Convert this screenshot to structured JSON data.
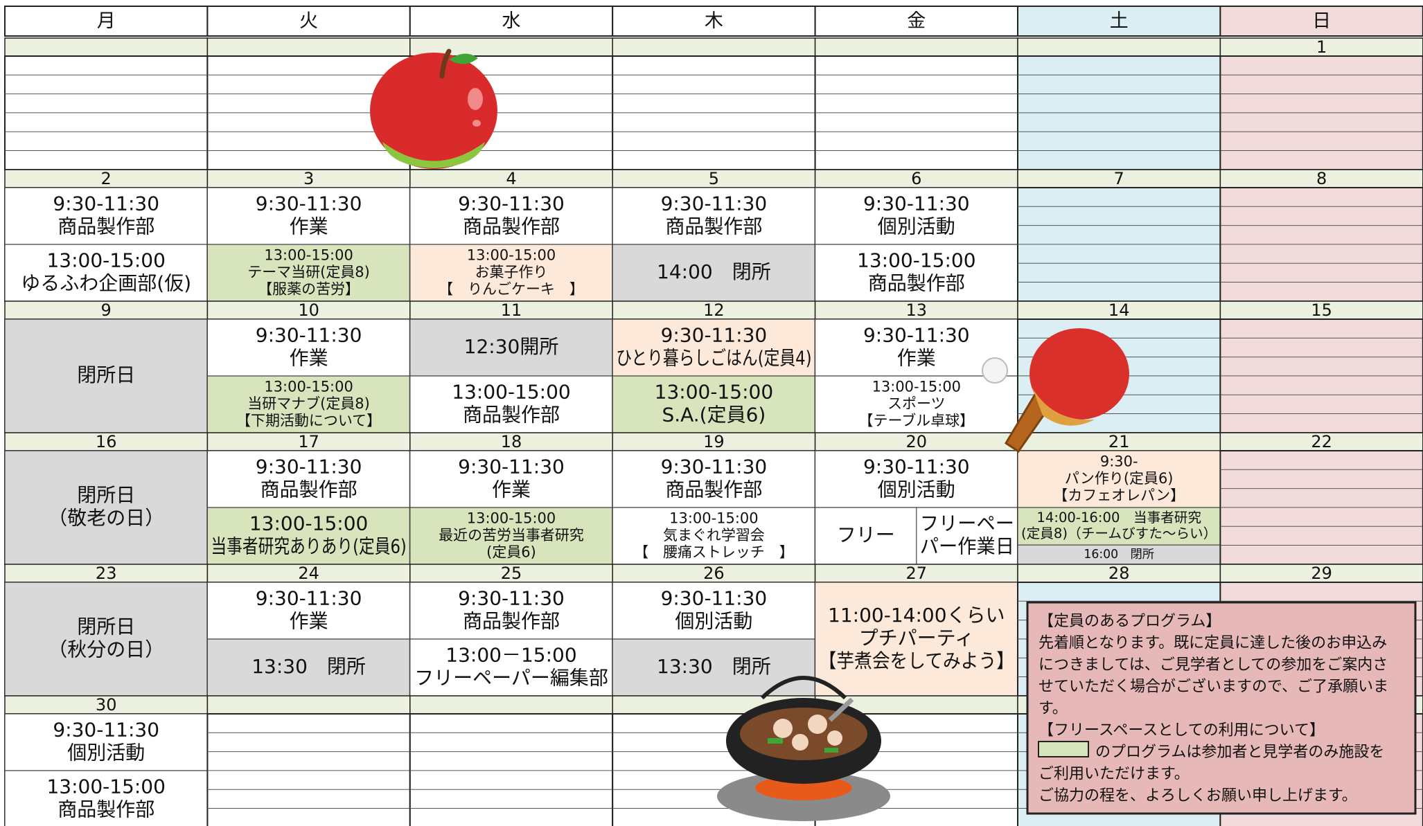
{
  "weekdays": [
    "月",
    "火",
    "水",
    "木",
    "金",
    "土",
    "日"
  ],
  "weeks": [
    {
      "days": [
        null,
        null,
        null,
        null,
        null,
        null,
        {
          "date": "1"
        }
      ]
    },
    {
      "days": [
        {
          "date": "2",
          "slots": [
            {
              "lines": [
                "9:30-11:30",
                "商品製作部"
              ]
            },
            {
              "lines": [
                "13:00-15:00",
                "ゆるふわ企画部(仮)"
              ]
            }
          ]
        },
        {
          "date": "3",
          "slots": [
            {
              "lines": [
                "9:30-11:30",
                "作業"
              ]
            },
            {
              "fill": "#d8e4bc",
              "lines": [
                "13:00-15:00",
                "テーマ当研(定員8)",
                "【服薬の苦労】"
              ]
            }
          ]
        },
        {
          "date": "4",
          "slots": [
            {
              "lines": [
                "9:30-11:30",
                "商品製作部"
              ]
            },
            {
              "fill": "#fde9d9",
              "lines": [
                "13:00-15:00",
                "お菓子作り",
                "【　りんごケーキ　】"
              ]
            }
          ]
        },
        {
          "date": "5",
          "slots": [
            {
              "lines": [
                "9:30-11:30",
                "商品製作部"
              ]
            },
            {
              "fill": "#d9d9d9",
              "lines": [
                "14:00　閉所"
              ]
            }
          ]
        },
        {
          "date": "6",
          "slots": [
            {
              "lines": [
                "9:30-11:30",
                "個別活動"
              ]
            },
            {
              "lines": [
                "13:00-15:00",
                "商品製作部"
              ]
            }
          ]
        },
        {
          "date": "7"
        },
        {
          "date": "8"
        }
      ]
    },
    {
      "days": [
        {
          "date": "9",
          "slots": [
            {
              "fill": "#d9d9d9",
              "lines": [
                "閉所日"
              ]
            }
          ]
        },
        {
          "date": "10",
          "slots": [
            {
              "lines": [
                "9:30-11:30",
                "作業"
              ]
            },
            {
              "fill": "#d8e4bc",
              "lines": [
                "13:00-15:00",
                "当研マナブ(定員8)",
                "【下期活動について】"
              ]
            }
          ]
        },
        {
          "date": "11",
          "slots": [
            {
              "fill": "#d9d9d9",
              "lines": [
                "12:30開所"
              ]
            },
            {
              "lines": [
                "13:00-15:00",
                "商品製作部"
              ]
            }
          ]
        },
        {
          "date": "12",
          "slots": [
            {
              "fill": "#fde9d9",
              "lines": [
                "9:30-11:30",
                "ひとり暮らしごはん(定員4)"
              ]
            },
            {
              "fill": "#d8e4bc",
              "lines": [
                "13:00-15:00",
                "S.A.(定員6)"
              ]
            }
          ]
        },
        {
          "date": "13",
          "slots": [
            {
              "lines": [
                "9:30-11:30",
                "作業"
              ]
            },
            {
              "lines": [
                "13:00-15:00",
                "スポーツ",
                "【テーブル卓球】"
              ]
            }
          ]
        },
        {
          "date": "14"
        },
        {
          "date": "15"
        }
      ]
    },
    {
      "days": [
        {
          "date": "16",
          "slots": [
            {
              "fill": "#d9d9d9",
              "lines": [
                "閉所日",
                "（敬老の日）"
              ]
            }
          ]
        },
        {
          "date": "17",
          "slots": [
            {
              "lines": [
                "9:30-11:30",
                "商品製作部"
              ]
            },
            {
              "fill": "#d8e4bc",
              "lines": [
                "13:00-15:00",
                "当事者研究ありあり(定員6)"
              ]
            }
          ]
        },
        {
          "date": "18",
          "slots": [
            {
              "lines": [
                "9:30-11:30",
                "作業"
              ]
            },
            {
              "fill": "#d8e4bc",
              "lines": [
                "13:00-15:00",
                "最近の苦労当事者研究",
                "(定員6)"
              ]
            }
          ]
        },
        {
          "date": "19",
          "slots": [
            {
              "lines": [
                "9:30-11:30",
                "商品製作部"
              ]
            },
            {
              "lines": [
                "13:00-15:00",
                "気まぐれ学習会",
                "【　腰痛ストレッチ　】"
              ]
            }
          ]
        },
        {
          "date": "20",
          "slots": [
            {
              "lines": [
                "9:30-11:30",
                "個別活動"
              ]
            },
            {
              "cols": [
                {
                  "lines": [
                    "フリー"
                  ]
                },
                {
                  "lines": [
                    "フリーペー",
                    "パー作業日"
                  ]
                }
              ]
            }
          ]
        },
        {
          "date": "21",
          "slots": [
            {
              "fill": "#fde9d9",
              "lines": [
                "9:30-",
                "パン作り(定員6)",
                "【カフェオレパン】"
              ]
            },
            {
              "fill": "#d8e4bc",
              "lines": [
                "14:00-16:00　当事者研究",
                "(定員8)（チームびすた〜らい）"
              ]
            },
            {
              "fill": "#d9d9d9",
              "lines": [
                "16:00　閉所"
              ]
            }
          ]
        },
        {
          "date": "22"
        }
      ]
    },
    {
      "days": [
        {
          "date": "23",
          "slots": [
            {
              "fill": "#d9d9d9",
              "lines": [
                "閉所日",
                "（秋分の日）"
              ]
            }
          ]
        },
        {
          "date": "24",
          "slots": [
            {
              "lines": [
                "9:30-11:30",
                "作業"
              ]
            },
            {
              "fill": "#d9d9d9",
              "lines": [
                "13:30　閉所"
              ]
            }
          ]
        },
        {
          "date": "25",
          "slots": [
            {
              "lines": [
                "9:30-11:30",
                "商品製作部"
              ]
            },
            {
              "lines": [
                "13:00－15:00",
                "フリーペーパー編集部"
              ]
            }
          ]
        },
        {
          "date": "26",
          "slots": [
            {
              "lines": [
                "9:30-11:30",
                "個別活動"
              ]
            },
            {
              "fill": "#d9d9d9",
              "lines": [
                "13:30　閉所"
              ]
            }
          ]
        },
        {
          "date": "27",
          "slots": [
            {
              "fill": "#fde9d9",
              "lines": [
                "11:00-14:00くらい",
                "プチパーティ",
                "【芋煮会をしてみよう】"
              ]
            }
          ]
        },
        {
          "date": "28"
        },
        {
          "date": "29"
        }
      ]
    },
    {
      "days": [
        {
          "date": "30",
          "slots": [
            {
              "lines": [
                "9:30-11:30",
                "個別活動"
              ]
            },
            {
              "lines": [
                "13:00-15:00",
                "商品製作部"
              ]
            }
          ]
        },
        null,
        null,
        null,
        null,
        null,
        null
      ]
    }
  ],
  "note": {
    "lines": [
      "【定員のあるプログラム】",
      "先着順となります。既に定員に達した後のお申込み",
      "につきましては、ご見学者としての参加をご案内さ",
      "せていただく場合がございますので、ご了承願いま",
      "す。",
      "【フリースペースとしての利用について】",
      "のプログラムは参加者と見学者のみ施設を",
      "ご利用いただけます。",
      "ご協力の程を、よろしくお願い申し上げます。"
    ]
  }
}
